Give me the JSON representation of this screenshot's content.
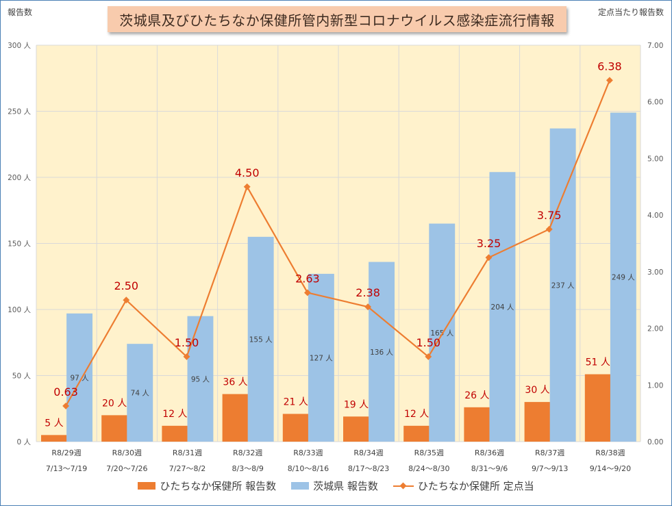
{
  "title": "茨城県及びひたちなか保健所管内新型コロナウイルス感染症流行情報",
  "left_axis_title": "報告数",
  "right_axis_title": "定点当たり報告数",
  "left_unit": "人",
  "colors": {
    "hitachinaka_bar": "#ed7d31",
    "ibaraki_bar": "#9dc3e6",
    "rate_line": "#ed7d31",
    "plot_bg": "#fff2cc",
    "title_bg": "#f8cbad",
    "label_red": "#c00000"
  },
  "legend": [
    "ひたちなか保健所 報告数",
    "茨城県 報告数",
    "ひたちなか保健所 定点当"
  ],
  "chart_data": {
    "type": "bar",
    "combo": "bar + line (secondary axis)",
    "title": "茨城県及びひたちなか保健所管内新型コロナウイルス感染症流行情報",
    "ylabel": "報告数",
    "y2label": "定点当たり報告数",
    "ylim": [
      0,
      300
    ],
    "y2lim": [
      0,
      7
    ],
    "yticks": [
      "0 人",
      "50 人",
      "100 人",
      "150 人",
      "200 人",
      "250 人",
      "300 人"
    ],
    "y2ticks": [
      "0.00",
      "1.00",
      "2.00",
      "3.00",
      "4.00",
      "5.00",
      "6.00",
      "7.00"
    ],
    "grid": true,
    "legend_position": "bottom",
    "categories": [
      [
        "R8/29週",
        "7/13～7/19"
      ],
      [
        "R8/30週",
        "7/20～7/26"
      ],
      [
        "R8/31週",
        "7/27～8/2"
      ],
      [
        "R8/32週",
        "8/3～8/9"
      ],
      [
        "R8/33週",
        "8/10～8/16"
      ],
      [
        "R8/34週",
        "8/17～8/23"
      ],
      [
        "R8/35週",
        "8/24～8/30"
      ],
      [
        "R8/36週",
        "8/31～9/6"
      ],
      [
        "R8/37週",
        "9/7～9/13"
      ],
      [
        "R8/38週",
        "9/14～9/20"
      ]
    ],
    "series": [
      {
        "name": "ひたちなか保健所 報告数",
        "type": "bar",
        "axis": "left",
        "values": [
          5,
          20,
          12,
          36,
          21,
          19,
          12,
          26,
          30,
          51
        ],
        "labels": [
          "5 人",
          "20 人",
          "12 人",
          "36 人",
          "21 人",
          "19 人",
          "12 人",
          "26 人",
          "30 人",
          "51 人"
        ]
      },
      {
        "name": "茨城県 報告数",
        "type": "bar",
        "axis": "left",
        "values": [
          97,
          74,
          95,
          155,
          127,
          136,
          165,
          204,
          237,
          249
        ],
        "labels": [
          "97 人",
          "74 人",
          "95 人",
          "155 人",
          "127 人",
          "136 人",
          "165 人",
          "204 人",
          "237 人",
          "249 人"
        ]
      },
      {
        "name": "ひたちなか保健所 定点当",
        "type": "line",
        "axis": "right",
        "values": [
          0.63,
          2.5,
          1.5,
          4.5,
          2.63,
          2.38,
          1.5,
          3.25,
          3.75,
          6.38
        ],
        "labels": [
          "0.63",
          "2.50",
          "1.50",
          "4.50",
          "2.63",
          "2.38",
          "1.50",
          "3.25",
          "3.75",
          "6.38"
        ]
      }
    ]
  }
}
